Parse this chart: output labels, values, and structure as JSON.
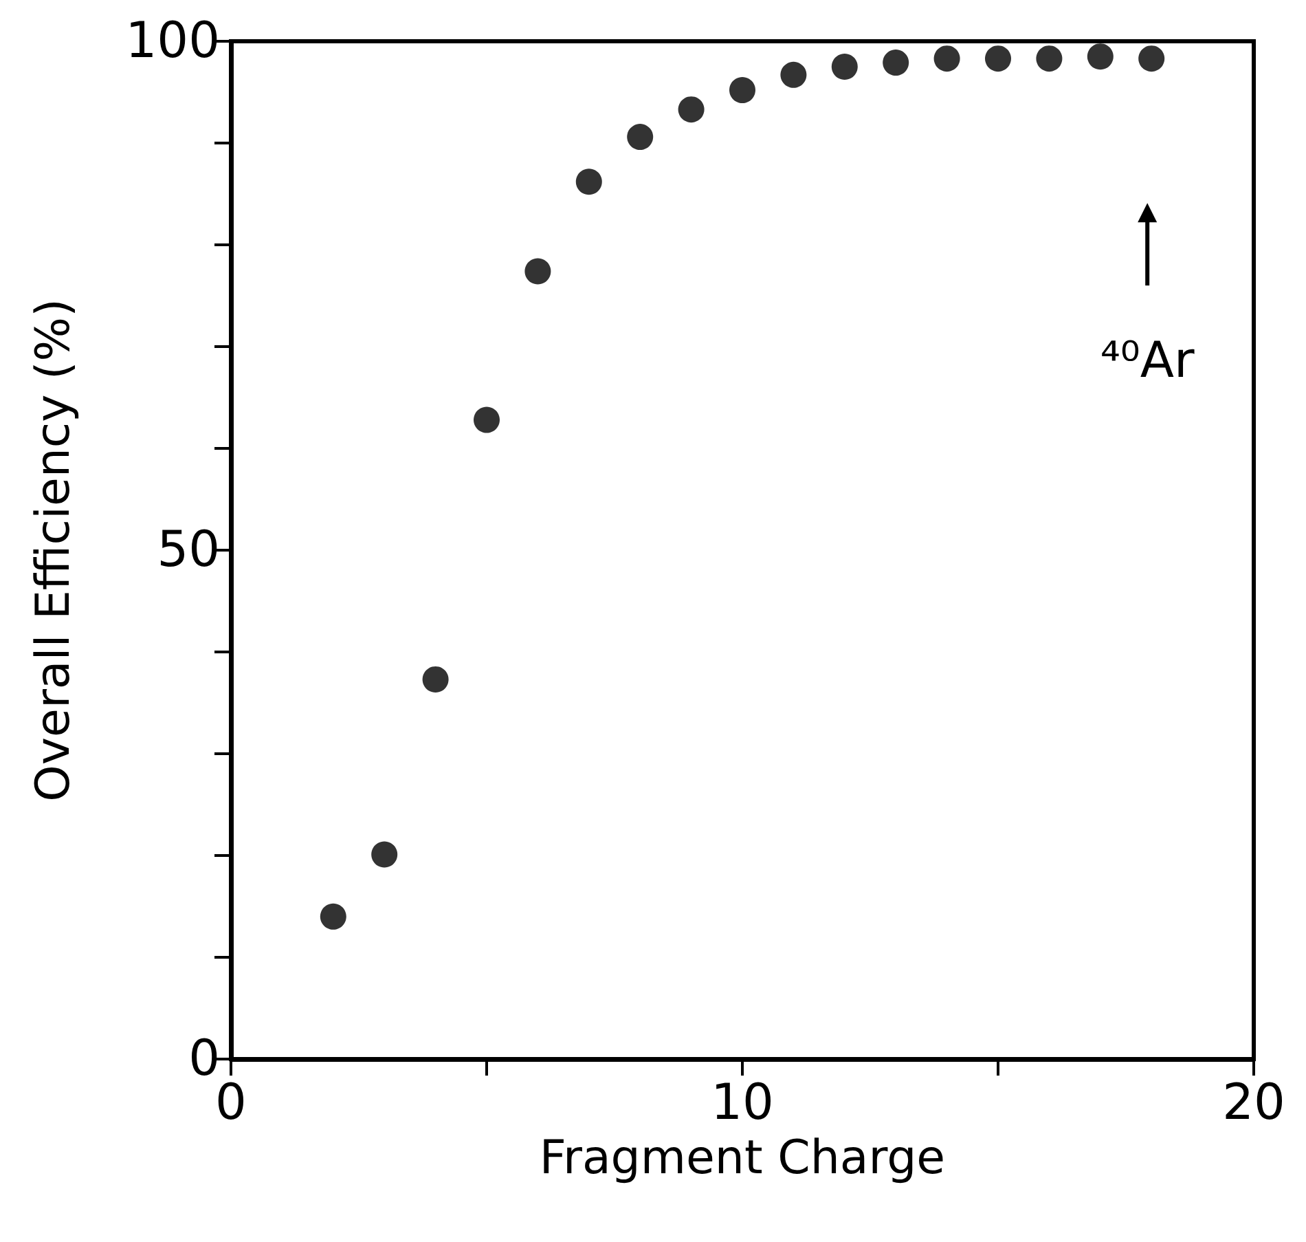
{
  "chart_data": {
    "type": "scatter",
    "xlabel": "Fragment Charge",
    "ylabel": "Overall Efficiency (%)",
    "x": [
      2,
      3,
      4,
      5,
      6,
      7,
      8,
      9,
      10,
      11,
      12,
      13,
      14,
      15,
      16,
      17,
      18
    ],
    "values": [
      14.0,
      20.1,
      37.3,
      62.8,
      77.4,
      86.2,
      90.6,
      93.3,
      95.2,
      96.7,
      97.5,
      97.9,
      98.3,
      98.3,
      98.3,
      98.5,
      98.3
    ],
    "color": "#000000",
    "marker": "circle",
    "grid": false,
    "xlim": [
      0,
      20
    ],
    "xticks": [
      0,
      {
        "value": 5,
        "label": null
      },
      10,
      {
        "value": 15,
        "label": null
      },
      20
    ],
    "ylim": [
      0,
      100
    ],
    "yticks": [
      0,
      {
        "value": 10,
        "label": null
      },
      {
        "value": 20,
        "label": null
      },
      {
        "value": 30,
        "label": null
      },
      {
        "value": 40,
        "label": null
      },
      50,
      {
        "value": 60,
        "label": null
      },
      {
        "value": 70,
        "label": null
      },
      {
        "value": 80,
        "label": null
      },
      {
        "value": 90,
        "label": null
      },
      100
    ],
    "annotations": [
      "⁴⁰Ar"
    ]
  }
}
